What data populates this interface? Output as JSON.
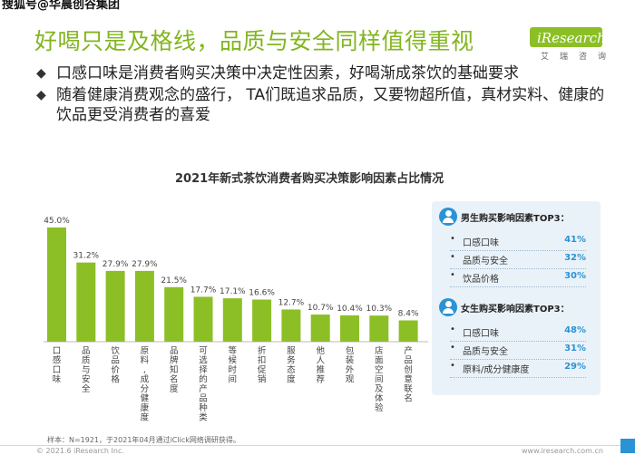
{
  "watermark": "搜狐号@华晨创谷集团",
  "header": {
    "title": "好喝只是及格线，品质与安全同样值得重视",
    "logo_text": "iResearch",
    "logo_sub": "艾瑞咨询"
  },
  "bullets": [
    "口感口味是消费者购买决策中决定性因素，好喝渐成茶饮的基础要求",
    "随着健康消费观念的盛行， TA们既追求品质，又要物超所值，真材实料、健康的饮品更受消费者的喜爱"
  ],
  "colors": {
    "accent": "#82b51f",
    "bar": "#8cbf26",
    "panel_bg": "#eaf2f9",
    "highlight": "#2a93d5"
  },
  "chart_data": {
    "type": "bar",
    "title": "2021年新式茶饮消费者购买决策影响因素占比情况",
    "categories": [
      "口感口味",
      "品质与安全",
      "饮品价格",
      "原料/成分健康度",
      "品牌知名度",
      "可选择的产品种类",
      "等候时间",
      "折扣促销",
      "服务态度",
      "他人推荐",
      "包装外观",
      "店面空间及体验",
      "产品创意联名"
    ],
    "category_labels": [
      "口感口味",
      "品质与安全",
      "饮品价格",
      "原料,成分健康度",
      "品牌知名度",
      "可选择的产品种类",
      "等候时间",
      "折扣促销",
      "服务态度",
      "他人推荐",
      "包装外观",
      "店面空间及体验",
      "产品创意联名"
    ],
    "values": [
      45.0,
      31.2,
      27.9,
      27.9,
      21.5,
      17.7,
      17.1,
      16.6,
      12.7,
      10.7,
      10.4,
      10.3,
      8.4
    ],
    "value_labels": [
      "45.0%",
      "31.2%",
      "27.9%",
      "27.9%",
      "21.5%",
      "17.7%",
      "17.1%",
      "16.6%",
      "12.7%",
      "10.7%",
      "10.4%",
      "10.3%",
      "8.4%"
    ],
    "ylim": [
      0,
      50
    ],
    "grid": false,
    "xlabel": "",
    "ylabel": ""
  },
  "panel": {
    "male": {
      "title": "男生购买影响因素TOP3：",
      "icon": "male-user-icon",
      "items": [
        {
          "label": "口感口味",
          "pct": "41%"
        },
        {
          "label": "品质与安全",
          "pct": "32%"
        },
        {
          "label": "饮品价格",
          "pct": "30%"
        }
      ]
    },
    "female": {
      "title": "女生购买影响因素TOP3：",
      "icon": "female-user-icon",
      "items": [
        {
          "label": "口感口味",
          "pct": "48%"
        },
        {
          "label": "品质与安全",
          "pct": "31%"
        },
        {
          "label": "原料/成分健康度",
          "pct": "29%"
        }
      ]
    }
  },
  "footnote": "样本：N=1921，于2021年04月通过iClick网络调研获得。",
  "footer": {
    "left": "© 2021.6 iResearch Inc.",
    "right": "www.iresearch.com.cn"
  }
}
